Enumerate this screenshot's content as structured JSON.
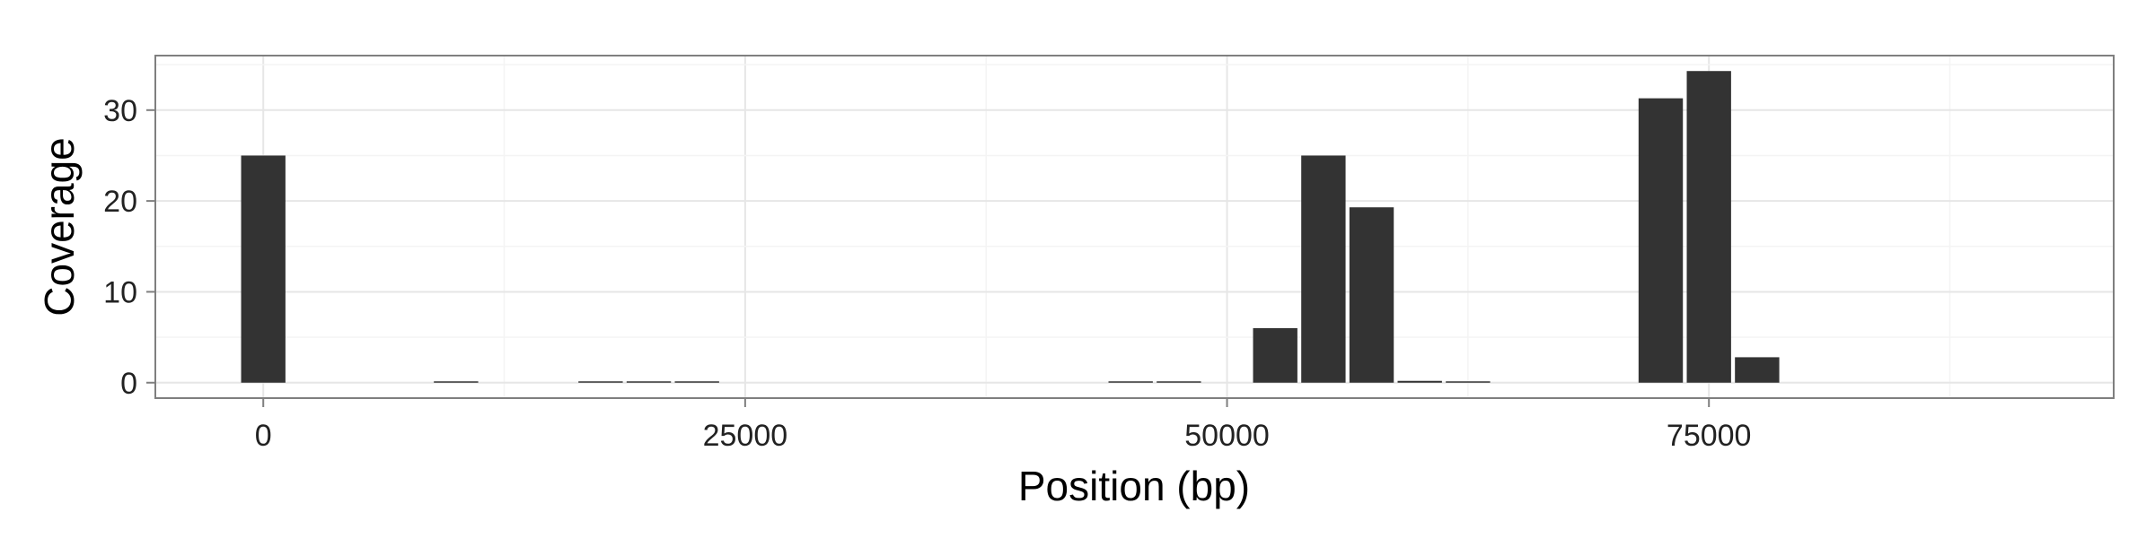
{
  "chart_data": {
    "type": "bar",
    "title": "",
    "xlabel": "Position (bp)",
    "ylabel": "Coverage",
    "xlim": [
      -5600,
      96000
    ],
    "ylim": [
      -1.7,
      36.0
    ],
    "grid": true,
    "bar_width": 2300,
    "x_ticks": [
      0,
      25000,
      50000,
      75000
    ],
    "x_tick_labels": [
      "0",
      "25000",
      "50000",
      "75000"
    ],
    "y_ticks": [
      0,
      10,
      20,
      30
    ],
    "y_tick_labels": [
      "0",
      "10",
      "20",
      "30"
    ],
    "bar_color": "#333333",
    "x": [
      0,
      10000,
      17500,
      20000,
      22500,
      45000,
      47500,
      52500,
      55000,
      57500,
      60000,
      62500,
      72500,
      75000,
      77500
    ],
    "values": [
      25,
      0.1,
      0.1,
      0.1,
      0.1,
      0.1,
      0.1,
      6,
      25,
      19.3,
      0.2,
      0.1,
      31.3,
      34.3,
      2.8
    ]
  }
}
